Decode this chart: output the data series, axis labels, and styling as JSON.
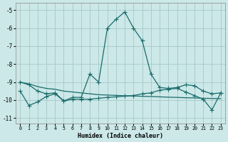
{
  "xlabel": "Humidex (Indice chaleur)",
  "xlim": [
    -0.5,
    23.5
  ],
  "ylim": [
    -11.3,
    -4.6
  ],
  "yticks": [
    -11,
    -10,
    -9,
    -8,
    -7,
    -6,
    -5
  ],
  "xticks": [
    0,
    1,
    2,
    3,
    4,
    5,
    6,
    7,
    8,
    9,
    10,
    11,
    12,
    13,
    14,
    15,
    16,
    17,
    18,
    19,
    20,
    21,
    22,
    23
  ],
  "bg_color": "#cce8e8",
  "grid_color": "#aacccc",
  "line_color": "#1a6b6b",
  "line1_y": [
    -9.0,
    -9.15,
    -9.5,
    -9.65,
    -9.6,
    -10.05,
    -9.85,
    -9.85,
    -8.55,
    -9.0,
    -6.0,
    -5.5,
    -5.1,
    -6.0,
    -6.7,
    -8.55,
    -9.3,
    -9.35,
    -9.3,
    -9.15,
    -9.2,
    -9.5,
    -9.65,
    -9.6
  ],
  "line2_y": [
    -9.0,
    -9.1,
    -9.25,
    -9.35,
    -9.4,
    -9.5,
    -9.55,
    -9.6,
    -9.65,
    -9.7,
    -9.72,
    -9.74,
    -9.76,
    -9.77,
    -9.79,
    -9.8,
    -9.82,
    -9.84,
    -9.85,
    -9.87,
    -9.88,
    -9.9,
    -9.91,
    -9.92
  ],
  "line3_y": [
    -9.5,
    -10.3,
    -10.1,
    -9.8,
    -9.65,
    -10.05,
    -9.95,
    -9.95,
    -9.95,
    -9.9,
    -9.85,
    -9.82,
    -9.78,
    -9.75,
    -9.65,
    -9.6,
    -9.45,
    -9.4,
    -9.35,
    -9.55,
    -9.75,
    -9.95,
    -10.55,
    -9.6
  ]
}
